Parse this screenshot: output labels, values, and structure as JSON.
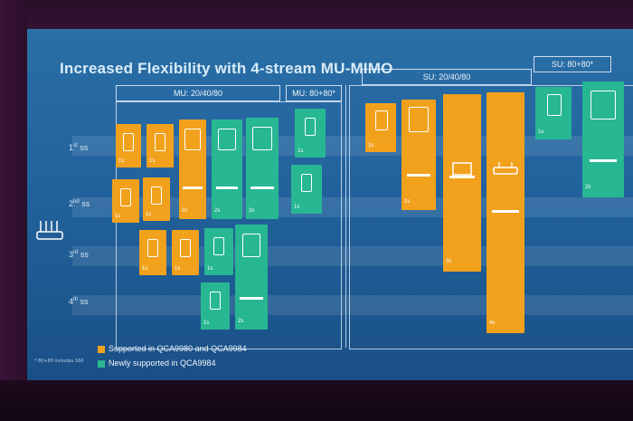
{
  "slide": {
    "title": "Increased Flexibility with 4-stream MU-MIMO",
    "groups": {
      "mu_20_40_80": "MU: 20/40/80",
      "mu_80_80": "MU: 80+80*",
      "su_20_40_80": "SU: 20/40/80",
      "su_80_80": "SU: 80+80*"
    },
    "rows": [
      {
        "num": "1",
        "suffix": "st",
        "ss": "ss"
      },
      {
        "num": "2",
        "suffix": "nd",
        "ss": "ss"
      },
      {
        "num": "3",
        "suffix": "rd",
        "ss": "ss"
      },
      {
        "num": "4",
        "suffix": "th",
        "ss": "ss"
      }
    ],
    "legend": {
      "orange": "Supported in QCA9980 and QCA9984",
      "green": "Newly supported in QCA9984"
    },
    "footnote": "* 80+80 includes 160",
    "badges": {
      "s1": "1s",
      "s2": "2s",
      "s3": "3s",
      "s4": "4s"
    },
    "colors": {
      "orange": "#f2a11d",
      "green": "#27b792",
      "background": "#2465a0"
    }
  }
}
